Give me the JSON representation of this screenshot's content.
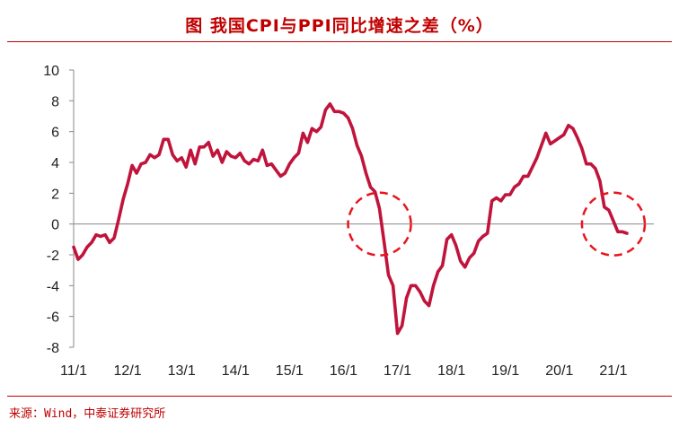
{
  "title": "图  我国CPI与PPI同比增速之差（%）",
  "source": "来源：Wind，中泰证券研究所",
  "colors": {
    "line": "#c0143c",
    "accent": "#c00000",
    "circle": "#e8141e",
    "axis": "#888888"
  },
  "chart_data": {
    "type": "line",
    "title": "图  我国CPI与PPI同比增速之差（%）",
    "xlabel": "",
    "ylabel": "",
    "ylim": [
      -8,
      10
    ],
    "yticks": [
      10,
      8,
      6,
      4,
      2,
      0,
      -2,
      -4,
      -6,
      -8
    ],
    "xticks": [
      "11/1",
      "12/1",
      "13/1",
      "14/1",
      "15/1",
      "16/1",
      "17/1",
      "18/1",
      "19/1",
      "20/1",
      "21/1"
    ],
    "grid": false,
    "legend": "none",
    "series": [
      {
        "x": [
          "2011-01",
          "2011-02",
          "2011-03",
          "2011-04",
          "2011-05",
          "2011-06",
          "2011-07",
          "2011-08",
          "2011-09",
          "2011-10",
          "2011-11",
          "2011-12",
          "2012-01",
          "2012-02",
          "2012-03",
          "2012-04",
          "2012-05",
          "2012-06",
          "2012-07",
          "2012-08",
          "2012-09",
          "2012-10",
          "2012-11",
          "2012-12",
          "2013-01",
          "2013-02",
          "2013-03",
          "2013-04",
          "2013-05",
          "2013-06",
          "2013-07",
          "2013-08",
          "2013-09",
          "2013-10",
          "2013-11",
          "2013-12",
          "2014-01",
          "2014-02",
          "2014-03",
          "2014-04",
          "2014-05",
          "2014-06",
          "2014-07",
          "2014-08",
          "2014-09",
          "2014-10",
          "2014-11",
          "2014-12",
          "2015-01",
          "2015-02",
          "2015-03",
          "2015-04",
          "2015-05",
          "2015-06",
          "2015-07",
          "2015-08",
          "2015-09",
          "2015-10",
          "2015-11",
          "2015-12",
          "2016-01",
          "2016-02",
          "2016-03",
          "2016-04",
          "2016-05",
          "2016-06",
          "2016-07",
          "2016-08",
          "2016-09",
          "2016-10",
          "2016-11",
          "2016-12",
          "2017-01",
          "2017-02",
          "2017-03",
          "2017-04",
          "2017-05",
          "2017-06",
          "2017-07",
          "2017-08",
          "2017-09",
          "2017-10",
          "2017-11",
          "2017-12",
          "2018-01",
          "2018-02",
          "2018-03",
          "2018-04",
          "2018-05",
          "2018-06",
          "2018-07",
          "2018-08",
          "2018-09",
          "2018-10",
          "2018-11",
          "2018-12",
          "2019-01",
          "2019-02",
          "2019-03",
          "2019-04",
          "2019-05",
          "2019-06",
          "2019-07",
          "2019-08",
          "2019-09",
          "2019-10",
          "2019-11",
          "2019-12",
          "2020-01",
          "2020-02",
          "2020-03",
          "2020-04",
          "2020-05",
          "2020-06",
          "2020-07",
          "2020-08",
          "2020-09",
          "2020-10",
          "2020-11",
          "2020-12",
          "2021-01",
          "2021-02",
          "2021-03",
          "2021-04"
        ],
        "values": [
          -1.5,
          -2.3,
          -2.0,
          -1.5,
          -1.2,
          -0.7,
          -0.8,
          -0.7,
          -1.2,
          -0.9,
          0.3,
          1.6,
          2.6,
          3.8,
          3.3,
          3.9,
          4.0,
          4.5,
          4.3,
          4.5,
          5.5,
          5.5,
          4.5,
          4.1,
          4.3,
          3.7,
          4.8,
          3.9,
          5.0,
          5.0,
          5.3,
          4.4,
          4.8,
          4.0,
          4.7,
          4.4,
          4.3,
          4.6,
          4.1,
          3.9,
          4.2,
          4.1,
          4.8,
          3.8,
          3.9,
          3.5,
          3.1,
          3.3,
          3.9,
          4.3,
          4.6,
          5.9,
          5.3,
          6.2,
          6.0,
          6.3,
          7.4,
          7.8,
          7.3,
          7.3,
          7.2,
          6.9,
          6.2,
          5.1,
          4.4,
          3.3,
          2.4,
          2.1,
          1.0,
          -1.1,
          -3.3,
          -4.0,
          -7.1,
          -6.6,
          -4.8,
          -4.0,
          -4.0,
          -4.4,
          -5.0,
          -5.3,
          -4.0,
          -3.1,
          -2.7,
          -1.0,
          -0.7,
          -1.4,
          -2.4,
          -2.8,
          -2.2,
          -1.9,
          -1.1,
          -0.8,
          -0.6,
          1.5,
          1.7,
          1.5,
          1.9,
          1.9,
          2.4,
          2.6,
          3.1,
          3.1,
          3.7,
          4.3,
          5.1,
          5.9,
          5.2,
          5.4,
          5.6,
          5.8,
          6.4,
          6.2,
          5.6,
          4.9,
          3.9,
          3.9,
          3.6,
          2.8,
          1.1,
          0.9,
          0.2,
          -0.5,
          -0.5,
          -0.6
        ]
      }
    ],
    "annotations": [
      {
        "type": "dashed-circle",
        "x": "2016-09",
        "y": 0.0
      },
      {
        "type": "dashed-circle",
        "x": "2021-01",
        "y": 0.0
      }
    ]
  }
}
